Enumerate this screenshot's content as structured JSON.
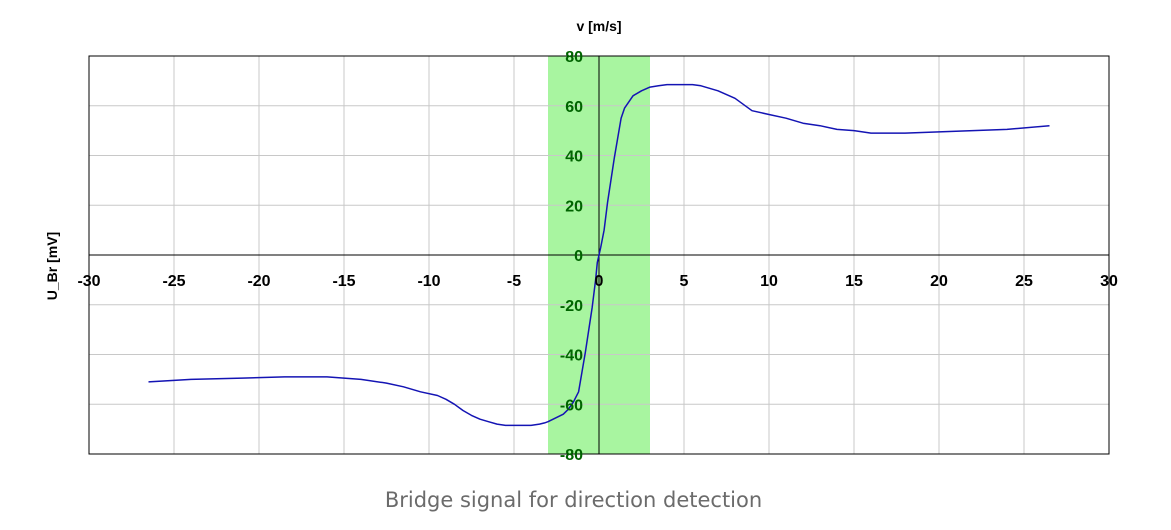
{
  "chart_data": {
    "type": "line",
    "xlabel": "v [m/s]",
    "ylabel": "U_Br [mV]",
    "xlim": [
      -30,
      30
    ],
    "ylim": [
      -80,
      80
    ],
    "x_ticks": [
      -30,
      -25,
      -20,
      -15,
      -10,
      -5,
      0,
      5,
      10,
      15,
      20,
      25,
      30
    ],
    "y_ticks": [
      80,
      60,
      40,
      20,
      0,
      -20,
      -40,
      -60,
      -80
    ],
    "grid": true,
    "highlight_band": {
      "x_range": [
        -3,
        3
      ],
      "color": "#a8f5a0"
    },
    "series": [
      {
        "color": "#1414b4",
        "x": [
          -26.5,
          -24,
          -21,
          -18.5,
          -16,
          -14,
          -12.5,
          -11.5,
          -10.5,
          -9.5,
          -9,
          -8.5,
          -8,
          -7.5,
          -7,
          -6.5,
          -6,
          -5.5,
          -5,
          -4.5,
          -4,
          -3.5,
          -3.2,
          -3,
          -2.7,
          -2.4,
          -2.1,
          -1.8,
          -1.5,
          -1.2,
          -1,
          -0.8,
          -0.6,
          -0.4,
          -0.2,
          -0.1,
          0,
          0.1,
          0.3,
          0.5,
          0.7,
          0.9,
          1.1,
          1.3,
          1.5,
          2,
          2.5,
          3,
          3.5,
          4,
          5,
          5.5,
          6,
          7,
          8,
          9,
          10,
          11,
          12,
          13,
          14,
          15,
          16,
          18,
          20,
          22,
          24,
          26.5
        ],
        "y": [
          -51,
          -50,
          -49.5,
          -49,
          -49,
          -50,
          -51.5,
          -53,
          -55,
          -56.5,
          -58,
          -60,
          -62.5,
          -64.5,
          -66,
          -67,
          -68,
          -68.5,
          -68.5,
          -68.5,
          -68.5,
          -68,
          -67.5,
          -67,
          -66,
          -65,
          -64,
          -62,
          -59,
          -55,
          -47,
          -39,
          -30,
          -21,
          -10,
          -3,
          0,
          3,
          10,
          21,
          30,
          39,
          47,
          55,
          59,
          64,
          66,
          67.5,
          68,
          68.5,
          68.5,
          68.5,
          68,
          66,
          63,
          58,
          56.5,
          55,
          53,
          52,
          50.5,
          50,
          49,
          49,
          49.5,
          50,
          50.5,
          52
        ]
      }
    ]
  },
  "caption": "Bridge signal for direction detection"
}
